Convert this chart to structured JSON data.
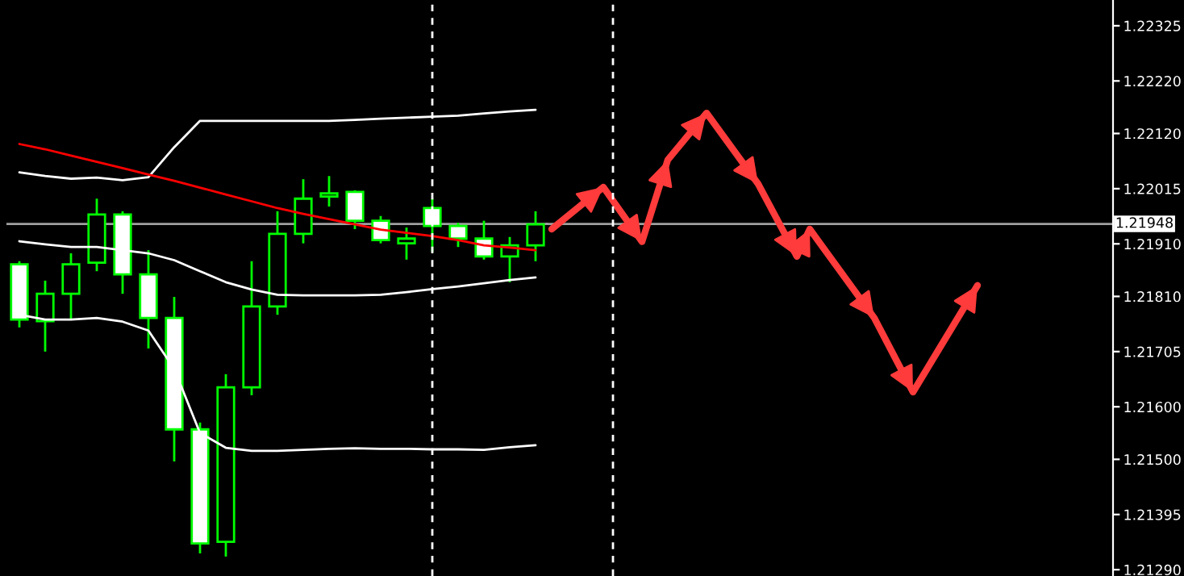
{
  "chart_data": [
    {
      "type": "candlestick",
      "categories": [
        null,
        null,
        null,
        null,
        null,
        null,
        null,
        null,
        null,
        null,
        null,
        null,
        null,
        null,
        null,
        null,
        null,
        null,
        null,
        null,
        null
      ],
      "ohlc": [
        [
          1.21871,
          1.21877,
          1.21751,
          1.21766
        ],
        [
          1.21763,
          1.2184,
          1.21705,
          1.21815
        ],
        [
          1.21815,
          1.21892,
          1.21766,
          1.21871
        ],
        [
          1.21874,
          1.21996,
          1.21858,
          1.21966
        ],
        [
          1.21966,
          1.21972,
          1.21815,
          1.21852
        ],
        [
          1.21852,
          1.21898,
          1.21711,
          1.21769
        ],
        [
          1.21769,
          1.21809,
          1.21496,
          1.21557
        ],
        [
          1.21557,
          1.2157,
          1.21321,
          1.2134
        ],
        [
          1.21343,
          1.21662,
          1.21315,
          1.21637
        ],
        [
          1.21637,
          1.21877,
          1.21622,
          1.21791
        ],
        [
          1.21791,
          1.21972,
          1.21775,
          1.21929
        ],
        [
          1.21929,
          1.22033,
          1.21911,
          1.21996
        ],
        [
          1.22,
          1.22039,
          1.21981,
          1.22006
        ],
        [
          1.22009,
          1.22012,
          1.21938,
          1.21954
        ],
        [
          1.21954,
          1.21963,
          1.21911,
          1.21917
        ],
        [
          1.21911,
          1.21941,
          1.2188,
          1.2192
        ],
        [
          1.21978,
          1.21996,
          1.21895,
          1.21944
        ],
        [
          1.21944,
          1.2195,
          1.21904,
          1.2192
        ],
        [
          1.2192,
          1.21954,
          1.2188,
          1.21886
        ],
        [
          1.21886,
          1.21923,
          1.21837,
          1.21907
        ],
        [
          1.21907,
          1.21972,
          1.21877,
          1.21947
        ]
      ],
      "colors": [
        "#ffffff",
        "#000000",
        "#000000",
        "#000000",
        "#ffffff",
        "#ffffff",
        "#ffffff",
        "#ffffff",
        "#000000",
        "#000000",
        "#000000",
        "#000000",
        "#000000",
        "#ffffff",
        "#ffffff",
        "#000000",
        "#ffffff",
        "#ffffff",
        "#ffffff",
        "#000000",
        "#000000"
      ],
      "series": [
        {
          "type": "line",
          "color": "#ffffff",
          "values": [
            1.22046,
            1.22039,
            1.22034,
            1.22036,
            1.22031,
            1.22037,
            1.22094,
            1.22144,
            1.22144,
            1.22144,
            1.22144,
            1.22144,
            1.22144,
            1.22146,
            1.22148,
            1.2215,
            1.22152,
            1.22154,
            1.22158,
            1.22162,
            1.22165
          ]
        },
        {
          "type": "line",
          "color": "#ffffff",
          "values": [
            1.21915,
            1.21909,
            1.21904,
            1.21904,
            1.21898,
            1.21892,
            1.21879,
            1.21858,
            1.21837,
            1.21823,
            1.21813,
            1.21812,
            1.21812,
            1.21812,
            1.21813,
            1.21818,
            1.21824,
            1.21829,
            1.21835,
            1.21841,
            1.21846
          ]
        },
        {
          "type": "line",
          "color": "#ffffff",
          "values": [
            1.21775,
            1.21766,
            1.21766,
            1.21769,
            1.21762,
            1.21745,
            1.21672,
            1.2155,
            1.21522,
            1.21516,
            1.21516,
            1.21518,
            1.2152,
            1.21521,
            1.2152,
            1.2152,
            1.21519,
            1.21519,
            1.21518,
            1.21523,
            1.21527
          ]
        },
        {
          "type": "line",
          "color": "#ff0000",
          "values": [
            1.221,
            1.2209,
            1.22078,
            1.22066,
            1.22054,
            1.22042,
            1.2203,
            1.22017,
            1.22004,
            1.21991,
            1.21978,
            1.21967,
            1.21957,
            1.21947,
            1.21937,
            1.21931,
            1.21925,
            1.21917,
            1.21907,
            1.21903,
            1.21898
          ]
        }
      ],
      "ref_lines": [
        {
          "axis": "y",
          "value": 1.21948,
          "color": "#a0a0a0",
          "line_style": "solid"
        }
      ],
      "ylim": [
        1.21278,
        1.22374
      ],
      "tick_labels": false,
      "grid": false
    },
    {
      "type": "line",
      "categories": [
        null,
        null,
        null,
        null,
        null,
        null,
        null,
        null,
        null,
        null,
        null,
        null,
        null,
        null,
        null,
        null,
        null,
        null,
        null,
        null,
        null,
        null,
        null,
        null,
        null,
        null,
        null,
        null,
        null,
        null,
        null,
        null,
        null,
        null,
        null,
        null,
        null,
        null,
        null,
        null,
        null,
        null,
        null,
        null
      ],
      "series": [
        {
          "color": "#ff3b3b",
          "values": [
            1.21938,
            null,
            null,
            null,
            1.22018,
            null,
            null,
            1.21914,
            null,
            1.2207,
            null,
            null,
            1.22159,
            null,
            null,
            null,
            1.22024,
            null,
            null,
            1.21886,
            1.21938,
            null,
            null,
            null,
            null,
            1.21769,
            null,
            null,
            1.21628,
            null,
            null,
            null,
            null,
            1.21831,
            null,
            null,
            null,
            null,
            null,
            null,
            null,
            null,
            null,
            null
          ]
        }
      ],
      "ref_lines": [
        {
          "axis": "y",
          "value": 1.21948,
          "label": "1.21948",
          "color": "#a0a0a0",
          "line_style": "solid"
        }
      ],
      "ylim": [
        1.21278,
        1.22374
      ],
      "yticks": [
        {
          "value": 1.22325,
          "label": "1.22325"
        },
        {
          "value": 1.2222,
          "label": "1.22220"
        },
        {
          "value": 1.2212,
          "label": "1.22120"
        },
        {
          "value": 1.22015,
          "label": "1.22015"
        },
        {
          "value": 1.2191,
          "label": "1.21910"
        },
        {
          "value": 1.2181,
          "label": "1.21810"
        },
        {
          "value": 1.21705,
          "label": "1.21705"
        },
        {
          "value": 1.216,
          "label": "1.21600"
        },
        {
          "value": 1.215,
          "label": "1.21500"
        },
        {
          "value": 1.21395,
          "label": "1.21395"
        },
        {
          "value": 1.2129,
          "label": "1.21290"
        }
      ],
      "tick_labels": "y",
      "grid": false
    }
  ]
}
